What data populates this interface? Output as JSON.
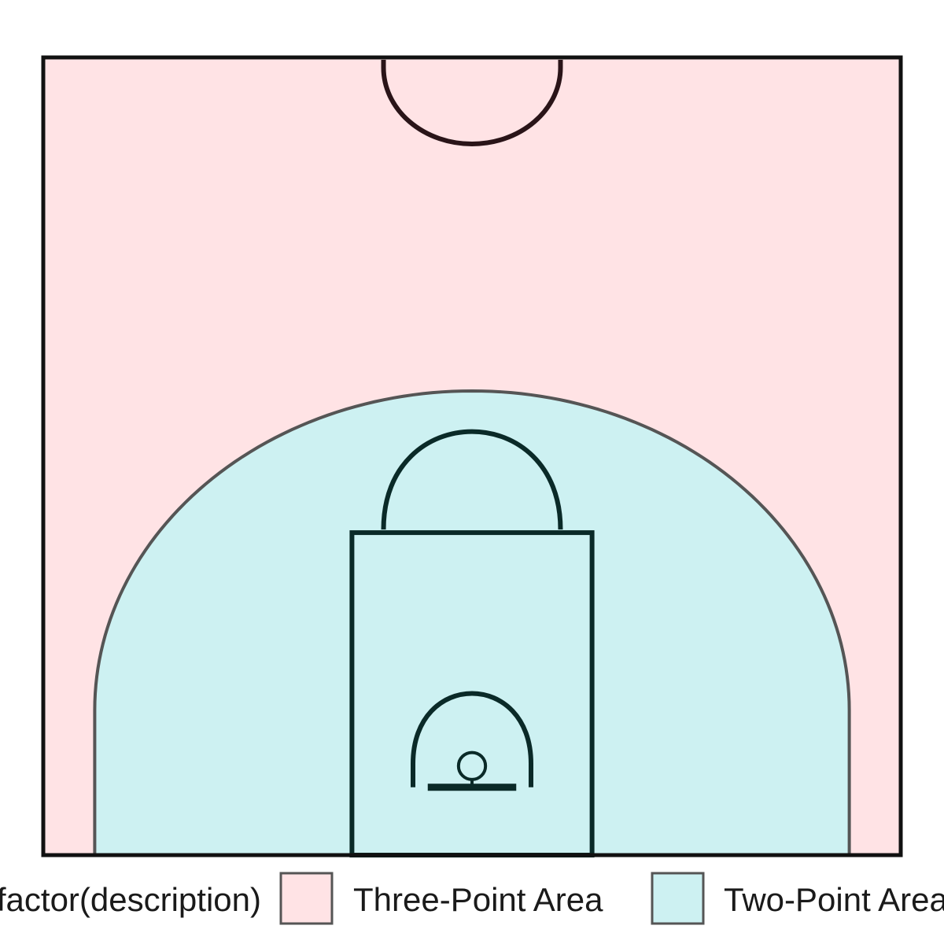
{
  "chart_data": {
    "type": "area",
    "title": "",
    "xlabel": "",
    "ylabel": "",
    "grid": false,
    "court": {
      "width_ft": 50,
      "length_ft": 47,
      "three_point_radius_ft": 22,
      "three_point_corner_distance_ft": 22,
      "key_width_ft": 16,
      "free_throw_line_distance_ft": 19,
      "free_throw_circle_radius_ft": 6,
      "restricted_area_radius_ft": 4,
      "hoop_radius_ft": 0.75,
      "hoop_center_from_baseline_ft": 5.25,
      "backboard_width_ft": 6,
      "backboard_from_baseline_ft": 4,
      "center_circle_radius_ft": 6
    },
    "legend": {
      "position": "bottom",
      "title": "factor(description)",
      "entries": [
        {
          "label": "Three-Point Area",
          "color": "#FFE3E5"
        },
        {
          "label": "Two-Point Area",
          "color": "#CDF1F2"
        }
      ]
    },
    "colors": {
      "court_line": "#0a2a28",
      "center_circle_line": "#2a1418",
      "region_border": "#555555",
      "boundary_line": "#111111"
    }
  }
}
